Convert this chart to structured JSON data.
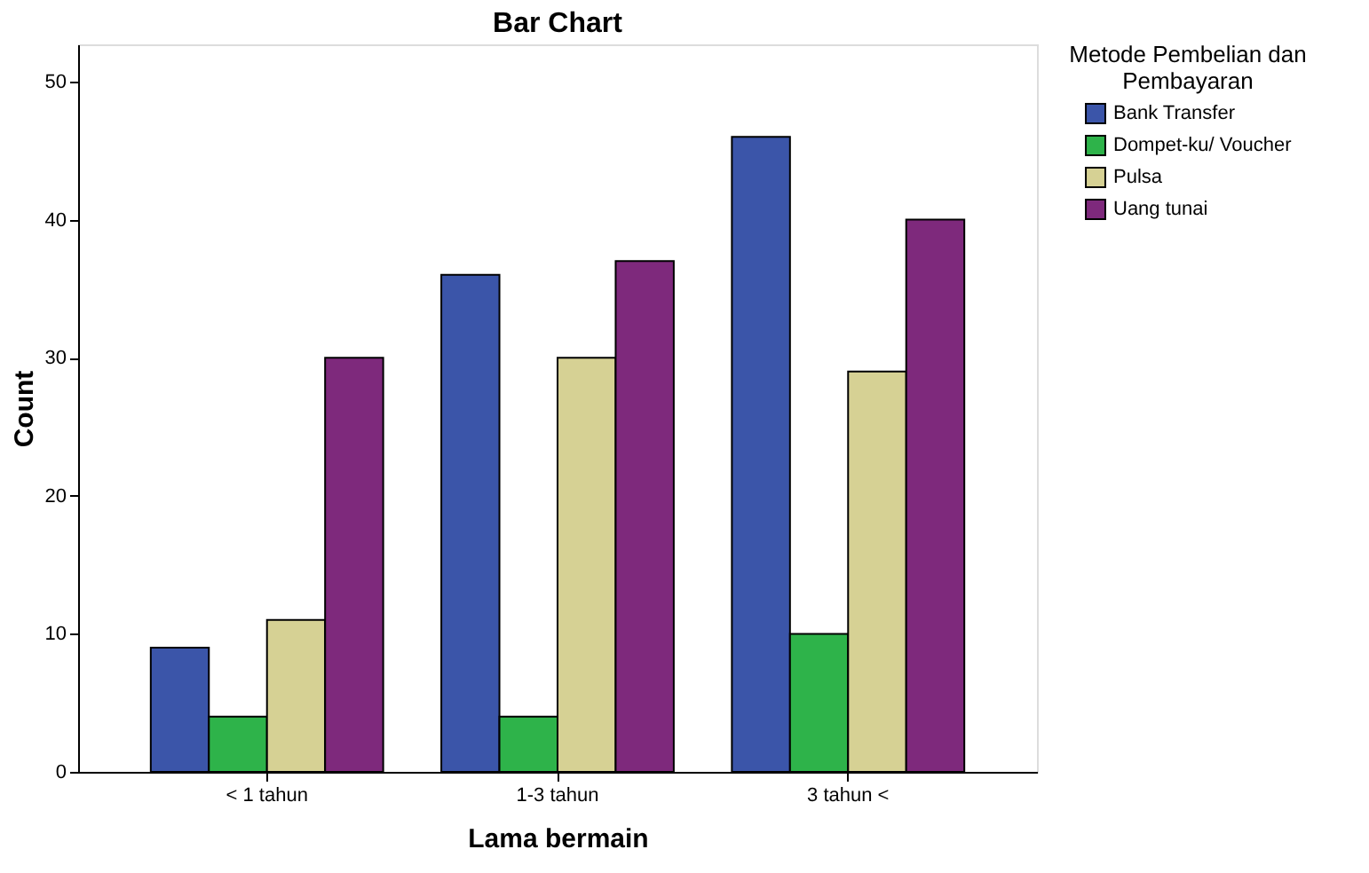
{
  "chart_data": {
    "type": "bar",
    "title": "Bar Chart",
    "xlabel": "Lama bermain",
    "ylabel": "Count",
    "legend_title": "Metode Pembelian dan Pembayaran",
    "categories": [
      "< 1 tahun",
      "1-3 tahun",
      "3 tahun <"
    ],
    "series": [
      {
        "name": "Bank Transfer",
        "color": "#3b55a9",
        "values": [
          9,
          36,
          46
        ]
      },
      {
        "name": "Dompet-ku/ Voucher",
        "color": "#2eb34a",
        "values": [
          4,
          4,
          10
        ]
      },
      {
        "name": "Pulsa",
        "color": "#d6d194",
        "values": [
          11,
          30,
          29
        ]
      },
      {
        "name": "Uang tunai",
        "color": "#7e297c",
        "values": [
          30,
          37,
          40
        ]
      }
    ],
    "ylim": [
      0,
      52.7
    ],
    "yticks": [
      0,
      10,
      20,
      30,
      40,
      50
    ],
    "grid": false,
    "legend": "top right"
  }
}
